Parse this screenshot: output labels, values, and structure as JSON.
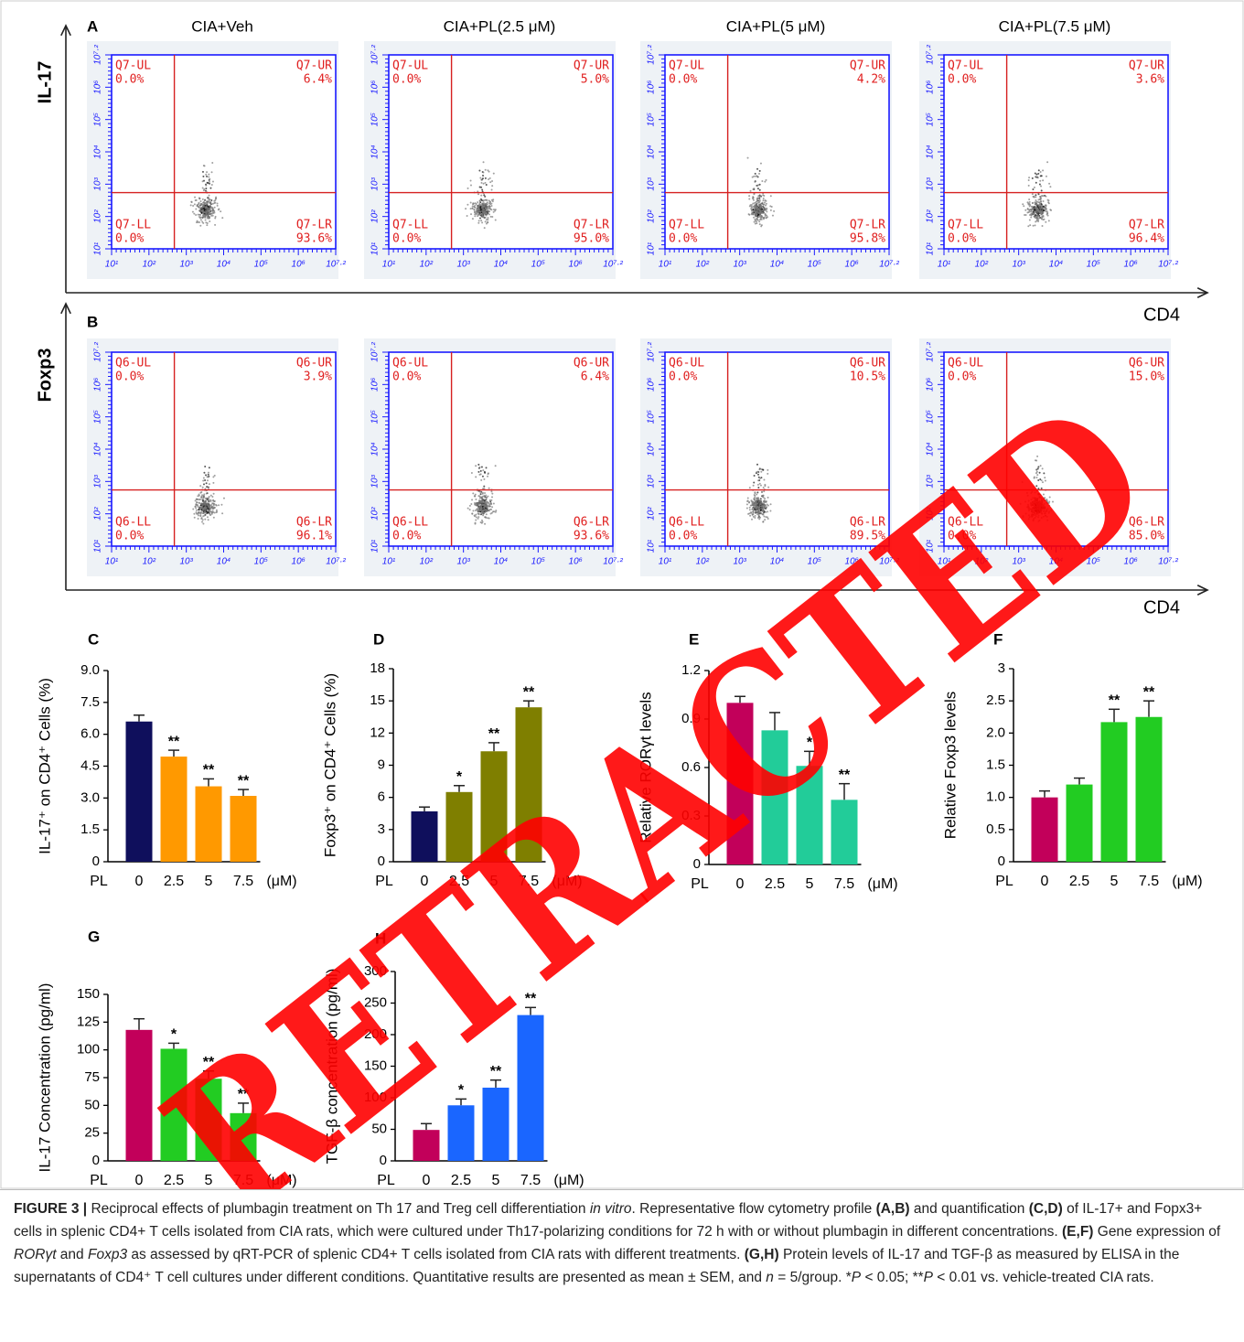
{
  "flow_axis_ticks": [
    "10¹",
    "10²",
    "10³",
    "10⁴",
    "10⁵",
    "10⁶",
    "10⁷·²"
  ],
  "flow_panels": [
    {
      "label": "A",
      "y_label": "IL-17",
      "x_label": "CD4",
      "plots": [
        {
          "title": "CIA+Veh",
          "quadrants": [
            {
              "name": "Q7-UL",
              "value": "0.0%"
            },
            {
              "name": "Q7-UR",
              "value": "6.4%"
            },
            {
              "name": "Q7-LL",
              "value": "0.0%"
            },
            {
              "name": "Q7-LR",
              "value": "93.6%"
            }
          ]
        },
        {
          "title": "CIA+PL(2.5 μM)",
          "quadrants": [
            {
              "name": "Q7-UL",
              "value": "0.0%"
            },
            {
              "name": "Q7-UR",
              "value": "5.0%"
            },
            {
              "name": "Q7-LL",
              "value": "0.0%"
            },
            {
              "name": "Q7-LR",
              "value": "95.0%"
            }
          ]
        },
        {
          "title": "CIA+PL(5 μM)",
          "quadrants": [
            {
              "name": "Q7-UL",
              "value": "0.0%"
            },
            {
              "name": "Q7-UR",
              "value": "4.2%"
            },
            {
              "name": "Q7-LL",
              "value": "0.0%"
            },
            {
              "name": "Q7-LR",
              "value": "95.8%"
            }
          ]
        },
        {
          "title": "CIA+PL(7.5 μM)",
          "quadrants": [
            {
              "name": "Q7-UL",
              "value": "0.0%"
            },
            {
              "name": "Q7-UR",
              "value": "3.6%"
            },
            {
              "name": "Q7-LL",
              "value": "0.0%"
            },
            {
              "name": "Q7-LR",
              "value": "96.4%"
            }
          ]
        }
      ]
    },
    {
      "label": "B",
      "y_label": "Foxp3",
      "x_label": "CD4",
      "plots": [
        {
          "quadrants": [
            {
              "name": "Q6-UL",
              "value": "0.0%"
            },
            {
              "name": "Q6-UR",
              "value": "3.9%"
            },
            {
              "name": "Q6-LL",
              "value": "0.0%"
            },
            {
              "name": "Q6-LR",
              "value": "96.1%"
            }
          ]
        },
        {
          "quadrants": [
            {
              "name": "Q6-UL",
              "value": "0.0%"
            },
            {
              "name": "Q6-UR",
              "value": "6.4%"
            },
            {
              "name": "Q6-LL",
              "value": "0.0%"
            },
            {
              "name": "Q6-LR",
              "value": "93.6%"
            }
          ]
        },
        {
          "quadrants": [
            {
              "name": "Q6-UL",
              "value": "0.0%"
            },
            {
              "name": "Q6-UR",
              "value": "10.5%"
            },
            {
              "name": "Q6-LL",
              "value": "0.0%"
            },
            {
              "name": "Q6-LR",
              "value": "89.5%"
            }
          ]
        },
        {
          "quadrants": [
            {
              "name": "Q6-UL",
              "value": "0.0%"
            },
            {
              "name": "Q6-UR",
              "value": "15.0%"
            },
            {
              "name": "Q6-LL",
              "value": "0.0%"
            },
            {
              "name": "Q6-LR",
              "value": "85.0%"
            }
          ]
        }
      ]
    }
  ],
  "chart_data": [
    {
      "label": "C",
      "type": "bar",
      "y_label": "IL-17⁺ on CD4⁺ Cells (%)",
      "category_prefix": "PL",
      "unit": "(μM)",
      "categories": [
        "0",
        "2.5",
        "5",
        "7.5"
      ],
      "values": [
        6.6,
        4.95,
        3.55,
        3.1
      ],
      "errors": [
        0.3,
        0.3,
        0.35,
        0.3
      ],
      "annotations": [
        null,
        "**",
        "**",
        "**"
      ],
      "colors": [
        "#0f0f5c",
        "#ff9900",
        "#ff9900",
        "#ff9900"
      ],
      "ylim": [
        0,
        9
      ],
      "yticks": [
        0,
        1.5,
        {
          "value": 3,
          "label": "3.0"
        },
        4.5,
        {
          "value": 6,
          "label": "6.0"
        },
        7.5,
        {
          "value": 9,
          "label": "9.0"
        }
      ]
    },
    {
      "label": "D",
      "type": "bar",
      "y_label": "Foxp3⁺ on CD4⁺ Cells (%)",
      "category_prefix": "PL",
      "unit": "(μM)",
      "categories": [
        "0",
        "2.5",
        "5",
        "7.5"
      ],
      "values": [
        4.7,
        6.5,
        10.3,
        14.4
      ],
      "errors": [
        0.4,
        0.6,
        0.8,
        0.6
      ],
      "annotations": [
        null,
        "*",
        "**",
        "**"
      ],
      "colors": [
        "#0f0f5c",
        "#7f7f00",
        "#7f7f00",
        "#7f7f00"
      ],
      "ylim": [
        0,
        18
      ],
      "yticks": [
        0,
        3,
        6,
        9,
        12,
        15,
        18
      ]
    },
    {
      "label": "E",
      "type": "bar",
      "y_label": "Relative RORγt levels",
      "category_prefix": "PL",
      "unit": "(μM)",
      "categories": [
        "0",
        "2.5",
        "5",
        "7.5"
      ],
      "values": [
        1.0,
        0.83,
        0.61,
        0.4
      ],
      "errors": [
        0.04,
        0.11,
        0.09,
        0.1
      ],
      "annotations": [
        null,
        null,
        "*",
        "**"
      ],
      "colors": [
        "#c2005a",
        "#22cc99",
        "#22cc99",
        "#22cc99"
      ],
      "ylim": [
        0,
        1.2
      ],
      "yticks": [
        0,
        0.3,
        0.6,
        0.9,
        1.2
      ]
    },
    {
      "label": "F",
      "type": "bar",
      "y_label": "Relative Foxp3 levels",
      "category_prefix": "PL",
      "unit": "(μM)",
      "categories": [
        "0",
        "2.5",
        "5",
        "7.5"
      ],
      "values": [
        1.0,
        1.2,
        2.17,
        2.25
      ],
      "errors": [
        0.1,
        0.1,
        0.2,
        0.25
      ],
      "annotations": [
        null,
        null,
        "**",
        "**"
      ],
      "colors": [
        "#c2005a",
        "#22cc22",
        "#22cc22",
        "#22cc22"
      ],
      "ylim": [
        0,
        3
      ],
      "yticks": [
        0,
        0.5,
        {
          "value": 1,
          "label": "1.0"
        },
        1.5,
        {
          "value": 2,
          "label": "2.0"
        },
        2.5,
        3
      ]
    },
    {
      "label": "G",
      "type": "bar",
      "y_label": "IL-17 Concentration (pg/ml)",
      "category_prefix": "PL",
      "unit": "(μM)",
      "categories": [
        "0",
        "2.5",
        "5",
        "7.5"
      ],
      "values": [
        118,
        101,
        74,
        43
      ],
      "errors": [
        10,
        5,
        7,
        9
      ],
      "annotations": [
        null,
        "*",
        "**",
        "**"
      ],
      "colors": [
        "#c2005a",
        "#22cc22",
        "#22cc22",
        "#22cc22"
      ],
      "ylim": [
        0,
        150
      ],
      "yticks": [
        0,
        25,
        50,
        75,
        100,
        125,
        150
      ]
    },
    {
      "label": "H",
      "type": "bar",
      "y_label": "TGF-β concentration (pg/ml)",
      "category_prefix": "PL",
      "unit": "(μM)",
      "categories": [
        "0",
        "2.5",
        "5",
        "7.5"
      ],
      "values": [
        49,
        88,
        116,
        231
      ],
      "errors": [
        10,
        10,
        12,
        12
      ],
      "annotations": [
        null,
        "*",
        "**",
        "**"
      ],
      "colors": [
        "#c2005a",
        "#1a66ff",
        "#1a66ff",
        "#1a66ff"
      ],
      "ylim": [
        0,
        300
      ],
      "yticks": [
        0,
        50,
        100,
        150,
        200,
        250,
        300
      ]
    }
  ],
  "watermark": "RETRACTED",
  "caption": [
    {
      "text": "FIGURE 3 |",
      "style": "bold"
    },
    {
      "text": " Reciprocal effects of plumbagin treatment on Th 17 and Treg cell differentiation "
    },
    {
      "text": "in vitro",
      "style": "italic"
    },
    {
      "text": ". Representative flow cytometry profile "
    },
    {
      "text": "(A,B)",
      "style": "bold"
    },
    {
      "text": " and quantification "
    },
    {
      "text": "(C,D)",
      "style": "bold"
    },
    {
      "text": " of IL-17+ and Fopx3+ cells in splenic CD4+ T cells isolated from CIA rats, which were cultured under Th17-polarizing conditions for 72 h with or without plumbagin in different concentrations. "
    },
    {
      "text": "(E,F)",
      "style": "bold"
    },
    {
      "text": " Gene expression of "
    },
    {
      "text": "RORγt",
      "style": "italic"
    },
    {
      "text": " and "
    },
    {
      "text": "Foxp3",
      "style": "italic"
    },
    {
      "text": " as assessed by qRT-PCR of splenic CD4+ T cells isolated from CIA rats with different treatments. "
    },
    {
      "text": "(G,H)",
      "style": "bold"
    },
    {
      "text": " Protein levels of IL-17 and TGF-β as measured by ELISA in the supernatants of CD4⁺ T cell cultures under different conditions. Quantitative results are presented as mean ± SEM, and "
    },
    {
      "text": "n",
      "style": "italic"
    },
    {
      "text": " = 5/group. *"
    },
    {
      "text": "P",
      "style": "italic"
    },
    {
      "text": " < 0.05; **"
    },
    {
      "text": "P",
      "style": "italic"
    },
    {
      "text": " < 0.01 vs. vehicle-treated CIA rats."
    }
  ]
}
